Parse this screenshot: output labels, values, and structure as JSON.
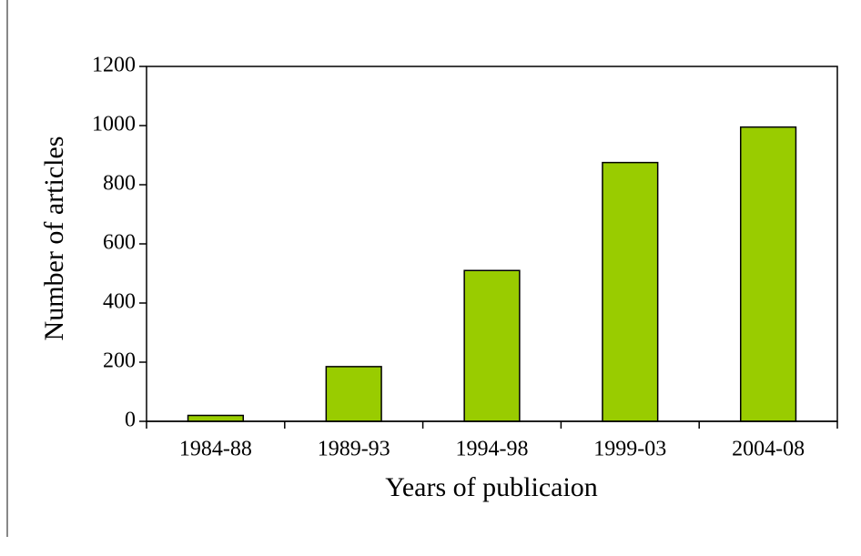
{
  "chart_data": {
    "type": "bar",
    "categories": [
      "1984-88",
      "1989-93",
      "1994-98",
      "1999-03",
      "2004-08"
    ],
    "values": [
      20,
      185,
      510,
      875,
      995
    ],
    "color": "#99cc00",
    "ylim": [
      0,
      1200
    ],
    "yticks": [
      0,
      200,
      400,
      600,
      800,
      1000,
      1200
    ],
    "y_label": "Number of articles",
    "x_label": "Years of publicaion",
    "grid": false
  }
}
